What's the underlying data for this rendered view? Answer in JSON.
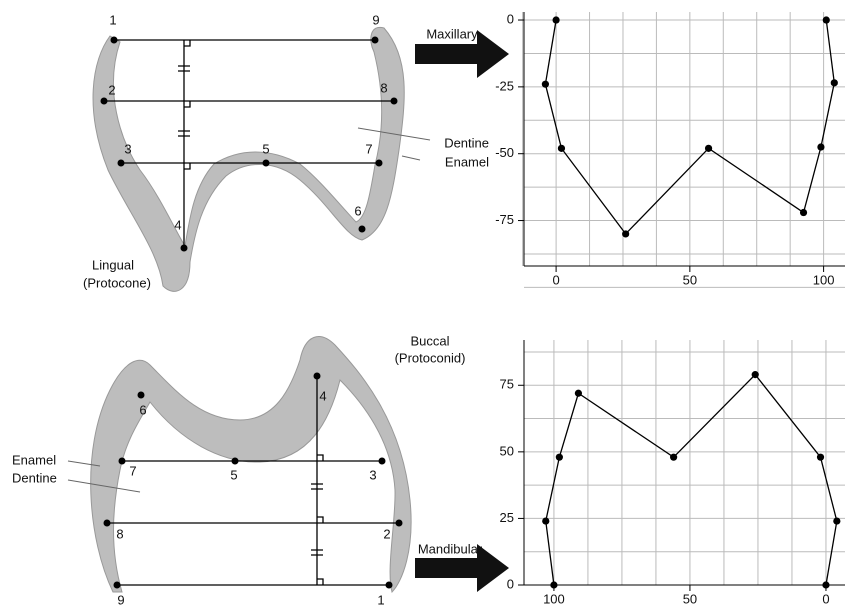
{
  "chart_data": [
    {
      "type": "line",
      "color": "#000000",
      "x": [
        0,
        -4,
        2,
        26,
        57,
        92.5,
        99,
        104,
        101
      ],
      "values": [
        0,
        -24,
        -48,
        -80,
        -48,
        -72,
        -47.5,
        -23.5,
        0
      ],
      "xlim": [
        -12,
        108
      ],
      "ylim": [
        -92,
        3
      ],
      "xticks": [
        0,
        50,
        100
      ],
      "yticks": [
        0,
        -25,
        -50,
        -75
      ],
      "grid": true
    },
    {
      "type": "line",
      "color": "#000000",
      "x": [
        100,
        103,
        98,
        91,
        56,
        26,
        2,
        -4,
        0
      ],
      "values": [
        0,
        24,
        48,
        72,
        48,
        79,
        48,
        24,
        0
      ],
      "xlim": [
        111,
        -7
      ],
      "ylim": [
        0,
        92
      ],
      "xticks": [
        100,
        50,
        0
      ],
      "yticks": [
        0,
        25,
        50,
        75
      ],
      "grid": true
    }
  ],
  "diagrams": [
    {
      "arrow_label": "Maxillary",
      "points": [
        "1",
        "2",
        "3",
        "4",
        "5",
        "6",
        "7",
        "8",
        "9"
      ],
      "side": "Lingual",
      "cusp": "(Protocone)",
      "dentine": "Dentine",
      "enamel": "Enamel"
    },
    {
      "arrow_label": "Mandibular",
      "points": [
        "1",
        "2",
        "3",
        "4",
        "5",
        "6",
        "7",
        "8",
        "9"
      ],
      "side": "Buccal",
      "cusp": "(Protoconid)",
      "dentine": "Dentine",
      "enamel": "Enamel"
    }
  ]
}
